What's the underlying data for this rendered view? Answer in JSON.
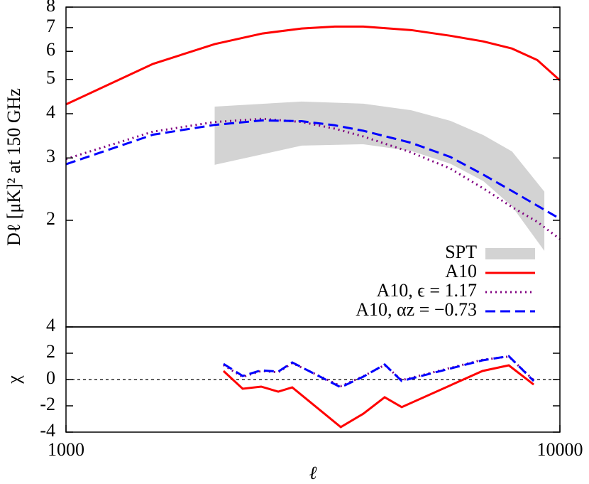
{
  "chart_data": [
    {
      "type": "line",
      "ylabel": "Dℓ [μK]² at 150 GHz",
      "xlim": [
        1000,
        10000
      ],
      "ylim": [
        1,
        8
      ],
      "log_x": true,
      "log_y": true,
      "yticks": [
        2,
        3,
        4,
        5,
        6,
        7,
        8
      ],
      "legend": "lower right",
      "series": [
        {
          "name": "SPT",
          "kind": "band",
          "color": "#d3d3d3",
          "x": [
            2000,
            3000,
            4000,
            5000,
            6000,
            7000,
            8000,
            9300
          ],
          "upper": [
            4.19,
            4.33,
            4.27,
            4.09,
            3.82,
            3.48,
            3.13,
            2.41
          ],
          "lower": [
            2.87,
            3.25,
            3.28,
            3.14,
            2.89,
            2.58,
            2.19,
            1.64
          ]
        },
        {
          "name": "A10",
          "kind": "line",
          "dash": "solid",
          "color": "#ff0000",
          "x": [
            1000,
            1500,
            2000,
            2500,
            3000,
            3500,
            4000,
            5000,
            6000,
            7000,
            8000,
            9000,
            10000
          ],
          "values": [
            4.25,
            5.53,
            6.29,
            6.74,
            6.96,
            7.05,
            7.05,
            6.89,
            6.64,
            6.4,
            6.11,
            5.67,
            4.97
          ]
        },
        {
          "name": "A10, ϵ = 1.17",
          "kind": "line",
          "dash": "dotted",
          "color": "#800080",
          "x": [
            1000,
            1500,
            2000,
            2500,
            3000,
            3500,
            4000,
            5000,
            6000,
            7000,
            8000,
            9000,
            10000
          ],
          "values": [
            2.98,
            3.56,
            3.79,
            3.87,
            3.79,
            3.63,
            3.45,
            3.11,
            2.8,
            2.46,
            2.18,
            1.98,
            1.77
          ]
        },
        {
          "name": "A10, αz = −0.73",
          "kind": "line",
          "dash": "dashed",
          "color": "#0000ff",
          "x": [
            1000,
            1500,
            2000,
            2500,
            3000,
            3500,
            4000,
            5000,
            6000,
            7000,
            8000,
            9000,
            10000
          ],
          "values": [
            2.88,
            3.49,
            3.72,
            3.83,
            3.81,
            3.71,
            3.58,
            3.31,
            3.02,
            2.69,
            2.42,
            2.2,
            2.02
          ]
        }
      ]
    },
    {
      "type": "line",
      "xlabel": "ℓ",
      "ylabel": "χ",
      "xlim": [
        1000,
        10000
      ],
      "ylim": [
        -4,
        4
      ],
      "log_x": true,
      "xticks": [
        1000,
        10000
      ],
      "yticks": [
        -4,
        -2,
        0,
        2,
        4
      ],
      "reference_line": 0,
      "series": [
        {
          "name": "A10",
          "kind": "line",
          "dash": "solid",
          "color": "#ff0000",
          "x": [
            2084,
            2279,
            2484,
            2690,
            2871,
            3600,
            4000,
            4418,
            4783,
            6970,
            7880,
            8850
          ],
          "values": [
            0.65,
            -0.7,
            -0.54,
            -0.92,
            -0.6,
            -3.62,
            -2.6,
            -1.35,
            -2.1,
            0.65,
            1.08,
            -0.38
          ]
        },
        {
          "name": "A10, ϵ = 1.17",
          "kind": "line",
          "dash": "dotted",
          "color": "#800080",
          "x": [
            2084,
            2279,
            2484,
            2690,
            2871,
            3600,
            4000,
            4418,
            4783,
            6970,
            7880,
            8850
          ],
          "values": [
            1.1,
            0.2,
            0.65,
            0.55,
            1.25,
            -0.5,
            0.25,
            1.1,
            -0.05,
            1.5,
            1.75,
            -0.05
          ]
        },
        {
          "name": "A10, αz = −0.73",
          "kind": "line",
          "dash": "dashed",
          "color": "#0000ff",
          "x": [
            2084,
            2279,
            2484,
            2690,
            2871,
            3600,
            4000,
            4418,
            4783,
            6970,
            7880,
            8850
          ],
          "values": [
            1.19,
            0.27,
            0.7,
            0.6,
            1.3,
            -0.59,
            0.22,
            1.14,
            -0.11,
            1.46,
            1.78,
            -0.11
          ]
        }
      ]
    }
  ]
}
